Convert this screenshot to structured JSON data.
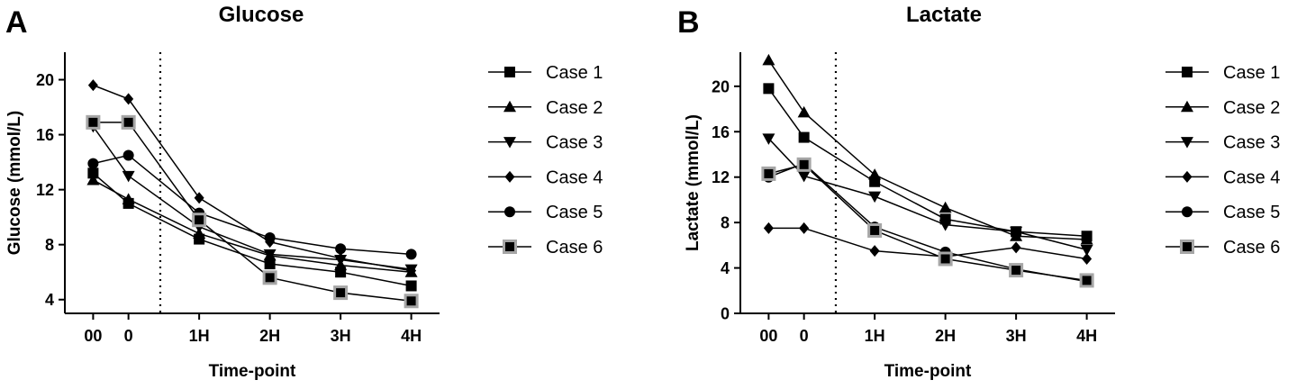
{
  "colors": {
    "ink": "#000000",
    "case6_fill": "#000000",
    "case6_edge": "#a6a6a6"
  },
  "chart_data": [
    {
      "type": "line",
      "panel": "A",
      "title": "Glucose",
      "xlabel": "Time-point",
      "ylabel": "Glucose (mmol/L)",
      "categories": [
        "00",
        "0",
        "1H",
        "2H",
        "3H",
        "4H"
      ],
      "category_x": [
        0,
        1,
        3,
        5,
        7,
        9
      ],
      "x_range": [
        -0.8,
        9.8
      ],
      "ylim": [
        3,
        22
      ],
      "yticks": [
        4,
        8,
        12,
        16,
        20
      ],
      "reference_line_at": 1.9,
      "legend_position": "right",
      "series": [
        {
          "name": "Case 1",
          "marker": "square",
          "values": [
            13.2,
            11.0,
            8.4,
            6.6,
            6.0,
            5.0
          ]
        },
        {
          "name": "Case 2",
          "marker": "triangle-up",
          "values": [
            12.7,
            11.3,
            8.8,
            7.2,
            6.5,
            6.0
          ]
        },
        {
          "name": "Case 3",
          "marker": "triangle-down",
          "values": [
            16.6,
            13.0,
            9.3,
            7.3,
            6.9,
            6.2
          ]
        },
        {
          "name": "Case 4",
          "marker": "diamond",
          "values": [
            19.6,
            18.6,
            11.4,
            8.2,
            7.0,
            6.1
          ]
        },
        {
          "name": "Case 5",
          "marker": "circle",
          "values": [
            13.9,
            14.5,
            10.3,
            8.5,
            7.7,
            7.3
          ]
        },
        {
          "name": "Case 6",
          "marker": "square-gray",
          "values": [
            16.9,
            16.9,
            9.8,
            5.6,
            4.5,
            3.9
          ]
        }
      ]
    },
    {
      "type": "line",
      "panel": "B",
      "title": "Lactate",
      "xlabel": "Time-point",
      "ylabel": "Lactate (mmol/L)",
      "categories": [
        "00",
        "0",
        "1H",
        "2H",
        "3H",
        "4H"
      ],
      "category_x": [
        0,
        1,
        3,
        5,
        7,
        9
      ],
      "x_range": [
        -0.8,
        9.8
      ],
      "ylim": [
        0,
        23
      ],
      "yticks": [
        0,
        4,
        8,
        12,
        16,
        20
      ],
      "reference_line_at": 1.9,
      "legend_position": "right",
      "series": [
        {
          "name": "Case 1",
          "marker": "square",
          "values": [
            19.8,
            15.5,
            11.6,
            8.3,
            7.2,
            6.8
          ]
        },
        {
          "name": "Case 2",
          "marker": "triangle-up",
          "values": [
            22.3,
            17.7,
            12.2,
            9.3,
            6.8,
            6.5
          ]
        },
        {
          "name": "Case 3",
          "marker": "triangle-down",
          "values": [
            15.4,
            12.1,
            10.3,
            7.8,
            7.2,
            5.6
          ]
        },
        {
          "name": "Case 4",
          "marker": "diamond",
          "values": [
            7.5,
            7.5,
            5.5,
            5.0,
            5.8,
            4.8
          ]
        },
        {
          "name": "Case 5",
          "marker": "circle",
          "values": [
            12.0,
            13.2,
            7.6,
            5.4,
            3.9,
            2.8
          ]
        },
        {
          "name": "Case 6",
          "marker": "square-gray",
          "values": [
            12.3,
            13.1,
            7.3,
            4.8,
            3.8,
            2.9
          ]
        }
      ]
    }
  ]
}
